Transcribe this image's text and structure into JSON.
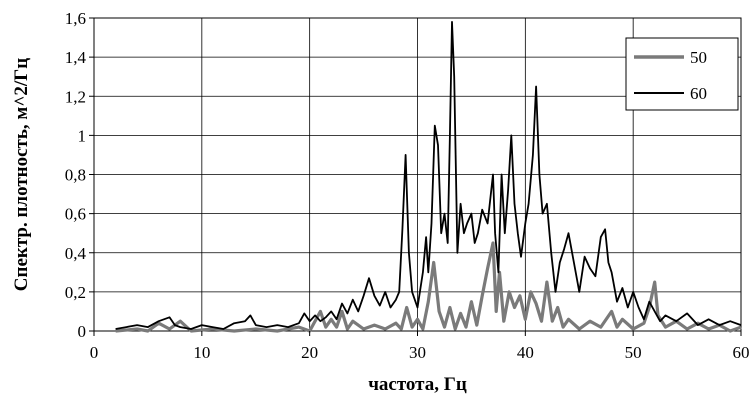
{
  "chart_data": {
    "type": "line",
    "xlabel": "частота, Гц",
    "ylabel": "Спектр. плотность, м^2/Гц",
    "xlim": [
      0,
      60
    ],
    "ylim": [
      0,
      1.6
    ],
    "x_ticks": [
      "0",
      "10",
      "20",
      "30",
      "40",
      "50",
      "60"
    ],
    "y_ticks": [
      "0",
      "0,2",
      "0,4",
      "0,6",
      "0,8",
      "1",
      "1,2",
      "1,4",
      "1,6"
    ],
    "grid": true,
    "legend_position": "top-right",
    "series": [
      {
        "name": "50",
        "color": "#7a7a7a",
        "points": [
          [
            2,
            0.0
          ],
          [
            4,
            0.01
          ],
          [
            5,
            0.0
          ],
          [
            6,
            0.04
          ],
          [
            7,
            0.01
          ],
          [
            8,
            0.05
          ],
          [
            9,
            0.0
          ],
          [
            11,
            0.01
          ],
          [
            13,
            0.0
          ],
          [
            15,
            0.01
          ],
          [
            17,
            0.0
          ],
          [
            19,
            0.02
          ],
          [
            20,
            0.0
          ],
          [
            21,
            0.1
          ],
          [
            21.5,
            0.02
          ],
          [
            22,
            0.06
          ],
          [
            22.5,
            0.02
          ],
          [
            23,
            0.1
          ],
          [
            23.5,
            0.01
          ],
          [
            24,
            0.05
          ],
          [
            25,
            0.01
          ],
          [
            26,
            0.03
          ],
          [
            27,
            0.01
          ],
          [
            28,
            0.04
          ],
          [
            28.5,
            0.01
          ],
          [
            29,
            0.12
          ],
          [
            29.5,
            0.02
          ],
          [
            30,
            0.06
          ],
          [
            30.5,
            0.01
          ],
          [
            31,
            0.15
          ],
          [
            31.5,
            0.35
          ],
          [
            32,
            0.1
          ],
          [
            32.5,
            0.02
          ],
          [
            33,
            0.12
          ],
          [
            33.5,
            0.01
          ],
          [
            34,
            0.09
          ],
          [
            34.5,
            0.02
          ],
          [
            35,
            0.15
          ],
          [
            35.5,
            0.03
          ],
          [
            36,
            0.18
          ],
          [
            36.5,
            0.32
          ],
          [
            37,
            0.45
          ],
          [
            37.3,
            0.1
          ],
          [
            37.6,
            0.3
          ],
          [
            38,
            0.05
          ],
          [
            38.5,
            0.2
          ],
          [
            39,
            0.12
          ],
          [
            39.5,
            0.18
          ],
          [
            40,
            0.06
          ],
          [
            40.5,
            0.2
          ],
          [
            41,
            0.14
          ],
          [
            41.5,
            0.05
          ],
          [
            42,
            0.25
          ],
          [
            42.5,
            0.05
          ],
          [
            43,
            0.12
          ],
          [
            43.5,
            0.02
          ],
          [
            44,
            0.06
          ],
          [
            45,
            0.01
          ],
          [
            46,
            0.05
          ],
          [
            47,
            0.02
          ],
          [
            48,
            0.1
          ],
          [
            48.5,
            0.02
          ],
          [
            49,
            0.06
          ],
          [
            50,
            0.01
          ],
          [
            51,
            0.04
          ],
          [
            51.5,
            0.12
          ],
          [
            52,
            0.25
          ],
          [
            52.3,
            0.08
          ],
          [
            53,
            0.02
          ],
          [
            54,
            0.05
          ],
          [
            55,
            0.01
          ],
          [
            56,
            0.04
          ],
          [
            57,
            0.01
          ],
          [
            58,
            0.03
          ],
          [
            59,
            0.0
          ],
          [
            60,
            0.02
          ]
        ]
      },
      {
        "name": "60",
        "color": "#000000",
        "points": [
          [
            2,
            0.01
          ],
          [
            3,
            0.02
          ],
          [
            4,
            0.03
          ],
          [
            5,
            0.02
          ],
          [
            6,
            0.05
          ],
          [
            7,
            0.07
          ],
          [
            7.5,
            0.03
          ],
          [
            8,
            0.02
          ],
          [
            9,
            0.01
          ],
          [
            10,
            0.03
          ],
          [
            11,
            0.02
          ],
          [
            12,
            0.01
          ],
          [
            13,
            0.04
          ],
          [
            14,
            0.05
          ],
          [
            14.5,
            0.08
          ],
          [
            15,
            0.03
          ],
          [
            16,
            0.02
          ],
          [
            17,
            0.03
          ],
          [
            18,
            0.02
          ],
          [
            19,
            0.04
          ],
          [
            19.5,
            0.09
          ],
          [
            20,
            0.05
          ],
          [
            20.5,
            0.08
          ],
          [
            21,
            0.05
          ],
          [
            21.5,
            0.07
          ],
          [
            22,
            0.1
          ],
          [
            22.5,
            0.06
          ],
          [
            23,
            0.14
          ],
          [
            23.5,
            0.09
          ],
          [
            24,
            0.16
          ],
          [
            24.5,
            0.1
          ],
          [
            25,
            0.18
          ],
          [
            25.5,
            0.27
          ],
          [
            26,
            0.18
          ],
          [
            26.5,
            0.13
          ],
          [
            27,
            0.2
          ],
          [
            27.5,
            0.12
          ],
          [
            28,
            0.16
          ],
          [
            28.3,
            0.2
          ],
          [
            28.6,
            0.52
          ],
          [
            28.9,
            0.9
          ],
          [
            29.2,
            0.4
          ],
          [
            29.5,
            0.2
          ],
          [
            30,
            0.12
          ],
          [
            30.5,
            0.3
          ],
          [
            30.8,
            0.48
          ],
          [
            31,
            0.3
          ],
          [
            31.3,
            0.55
          ],
          [
            31.6,
            1.05
          ],
          [
            31.9,
            0.95
          ],
          [
            32.2,
            0.5
          ],
          [
            32.5,
            0.6
          ],
          [
            32.8,
            0.45
          ],
          [
            33,
            1.0
          ],
          [
            33.2,
            1.58
          ],
          [
            33.4,
            1.3
          ],
          [
            33.7,
            0.4
          ],
          [
            34,
            0.65
          ],
          [
            34.3,
            0.5
          ],
          [
            34.6,
            0.55
          ],
          [
            35,
            0.6
          ],
          [
            35.3,
            0.45
          ],
          [
            35.6,
            0.5
          ],
          [
            36,
            0.62
          ],
          [
            36.5,
            0.55
          ],
          [
            37,
            0.8
          ],
          [
            37.2,
            0.5
          ],
          [
            37.5,
            0.3
          ],
          [
            37.8,
            0.8
          ],
          [
            38.1,
            0.5
          ],
          [
            38.4,
            0.72
          ],
          [
            38.7,
            1.0
          ],
          [
            39,
            0.65
          ],
          [
            39.3,
            0.5
          ],
          [
            39.6,
            0.38
          ],
          [
            40,
            0.55
          ],
          [
            40.3,
            0.65
          ],
          [
            40.7,
            0.9
          ],
          [
            41,
            1.25
          ],
          [
            41.3,
            0.8
          ],
          [
            41.6,
            0.6
          ],
          [
            42,
            0.65
          ],
          [
            42.4,
            0.4
          ],
          [
            42.8,
            0.2
          ],
          [
            43.2,
            0.35
          ],
          [
            43.6,
            0.42
          ],
          [
            44,
            0.5
          ],
          [
            44.5,
            0.35
          ],
          [
            45,
            0.2
          ],
          [
            45.5,
            0.38
          ],
          [
            46,
            0.32
          ],
          [
            46.5,
            0.28
          ],
          [
            47,
            0.48
          ],
          [
            47.4,
            0.52
          ],
          [
            47.7,
            0.35
          ],
          [
            48,
            0.3
          ],
          [
            48.5,
            0.15
          ],
          [
            49,
            0.22
          ],
          [
            49.5,
            0.12
          ],
          [
            50,
            0.2
          ],
          [
            50.5,
            0.12
          ],
          [
            51,
            0.06
          ],
          [
            51.5,
            0.15
          ],
          [
            52,
            0.1
          ],
          [
            52.5,
            0.05
          ],
          [
            53,
            0.08
          ],
          [
            54,
            0.05
          ],
          [
            55,
            0.09
          ],
          [
            56,
            0.03
          ],
          [
            57,
            0.06
          ],
          [
            58,
            0.03
          ],
          [
            59,
            0.05
          ],
          [
            60,
            0.03
          ]
        ]
      }
    ]
  }
}
